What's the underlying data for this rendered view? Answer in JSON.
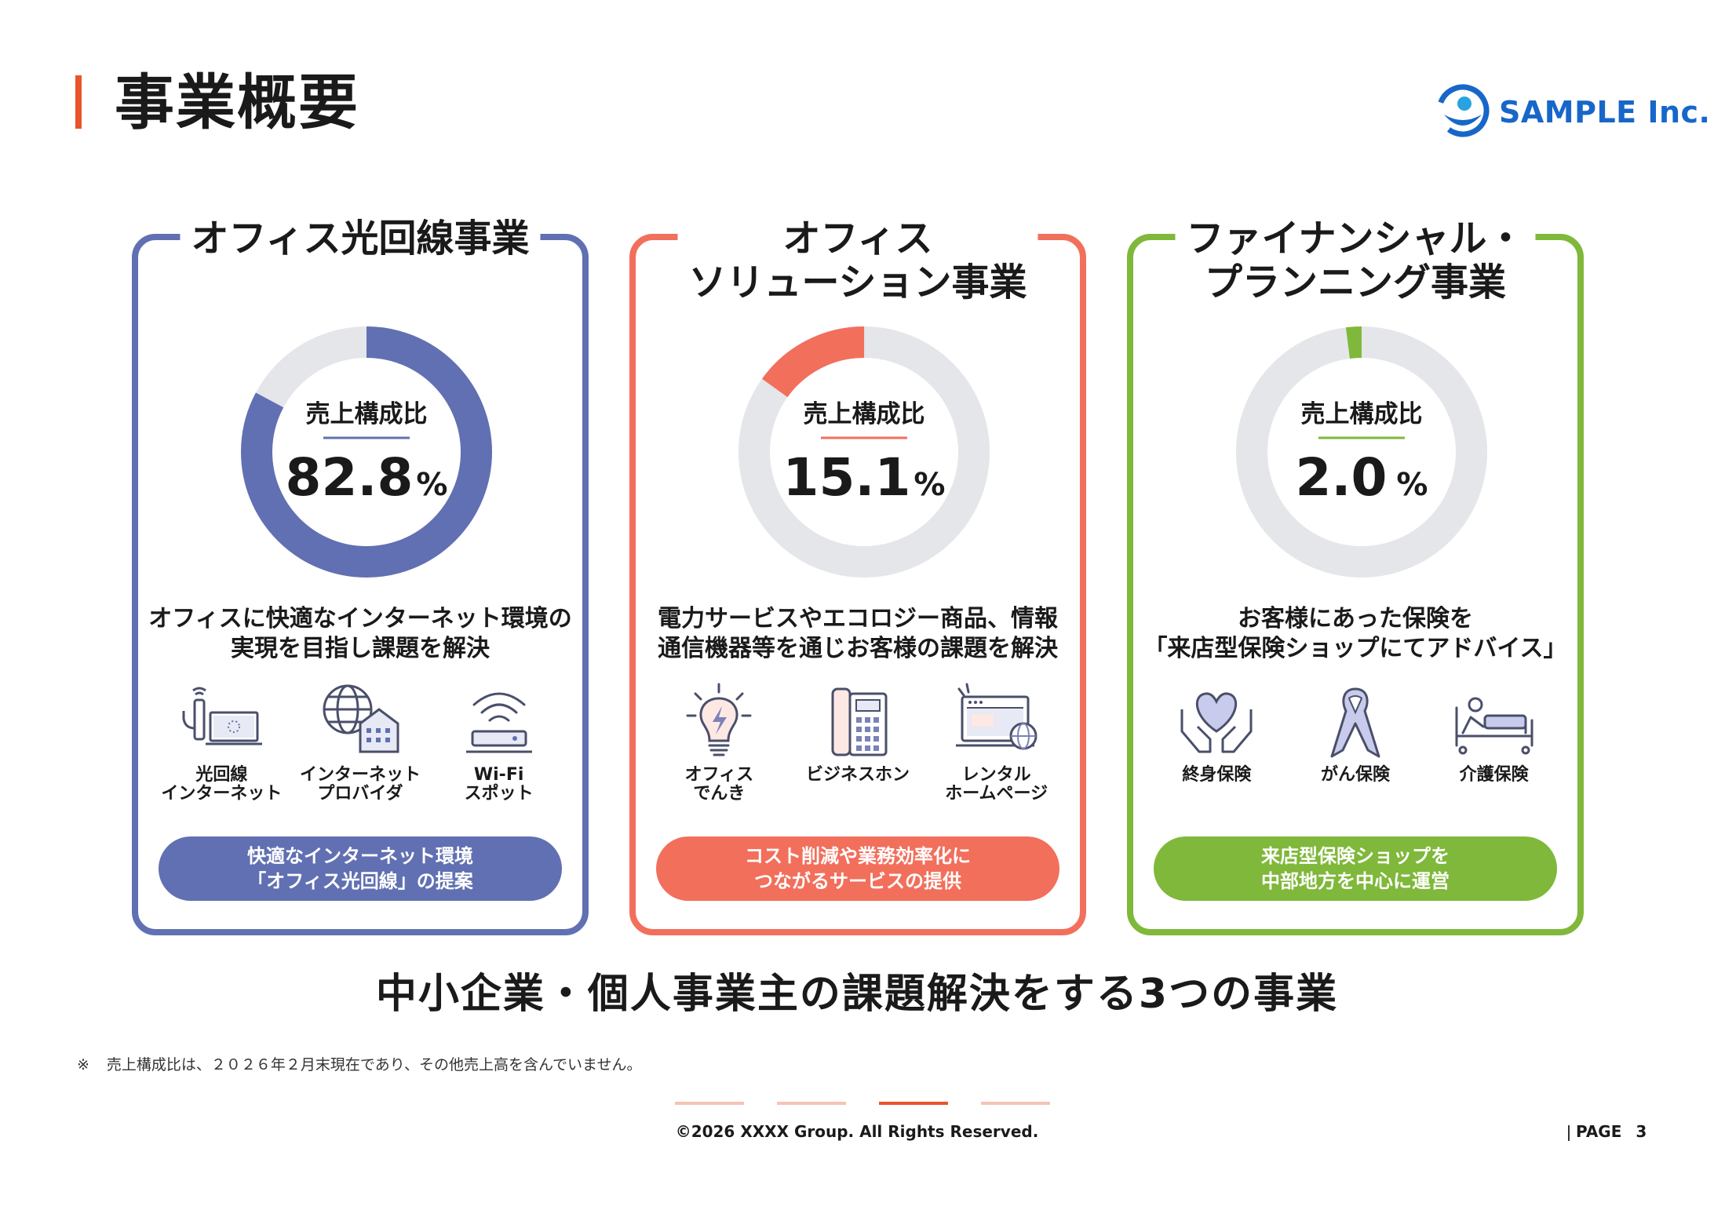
{
  "header": {
    "title": "事業概要",
    "logo_text": "SAMPLE Inc.",
    "logo_icon": "sample-logo-icon"
  },
  "colors": {
    "accent": "#e9542b",
    "blue": "#6170b2",
    "coral": "#f26f5c",
    "green": "#7fb83a",
    "track": "#e4e6e9",
    "logo": "#1767c9"
  },
  "chart_data": {
    "type": "pie",
    "categories": [
      "オフィス光回線事業",
      "オフィスソリューション事業",
      "ファイナンシャル・プランニング事業"
    ],
    "values": [
      82.8,
      15.1,
      2.0
    ],
    "unit": "%",
    "center_label": "売上構成比"
  },
  "cards": [
    {
      "title_lines": [
        "オフィス光回線事業"
      ],
      "center_label": "売上構成比",
      "value": "82.8",
      "unit": "%",
      "desc_lines": [
        "オフィスに快適なインターネット環境の",
        "実現を目指し課題を解決"
      ],
      "items": [
        {
          "icon": "fiber-internet-icon",
          "label_lines": [
            "光回線",
            "インターネット"
          ]
        },
        {
          "icon": "internet-provider-icon",
          "label_lines": [
            "インターネット",
            "プロバイダ"
          ]
        },
        {
          "icon": "wifi-router-icon",
          "label_lines": [
            "Wi-Fi",
            "スポット"
          ]
        }
      ],
      "pill_lines": [
        "快適なインターネット環境",
        "「オフィス光回線」の提案"
      ]
    },
    {
      "title_lines": [
        "オフィス",
        "ソリューション事業"
      ],
      "center_label": "売上構成比",
      "value": "15.1",
      "unit": "%",
      "desc_lines": [
        "電力サービスやエコロジー商品、情報",
        "通信機器等を通じお客様の課題を解決"
      ],
      "items": [
        {
          "icon": "lightbulb-icon",
          "label_lines": [
            "オフィス",
            "でんき"
          ]
        },
        {
          "icon": "business-phone-icon",
          "label_lines": [
            "ビジネスホン"
          ]
        },
        {
          "icon": "website-icon",
          "label_lines": [
            "レンタル",
            "ホームページ"
          ]
        }
      ],
      "pill_lines": [
        "コスト削減や業務効率化に",
        "つながるサービスの提供"
      ]
    },
    {
      "title_lines": [
        "ファイナンシャル・",
        "プランニング事業"
      ],
      "center_label": "売上構成比",
      "value": "2.0",
      "unit": "%",
      "desc_lines": [
        "お客様にあった保険を",
        "「来店型保険ショップにてアドバイス」"
      ],
      "items": [
        {
          "icon": "heart-hands-icon",
          "label_lines": [
            "終身保険"
          ]
        },
        {
          "icon": "ribbon-icon",
          "label_lines": [
            "がん保険"
          ]
        },
        {
          "icon": "care-bed-icon",
          "label_lines": [
            "介護保険"
          ]
        }
      ],
      "pill_lines": [
        "来店型保険ショップを",
        "中部地方を中心に運営"
      ]
    }
  ],
  "tagline": "中小企業・個人事業主の課題解決をする3つの事業",
  "footnote": {
    "mark": "※",
    "text": "売上構成比は、２０２６年２月末現在であり、その他売上高を含んでいません。"
  },
  "footer": {
    "copyright": "©2026 XXXX Group. All Rights Reserved.",
    "page_label": "PAGE",
    "page_number": "3",
    "progress_total": 4,
    "progress_current": 3
  }
}
